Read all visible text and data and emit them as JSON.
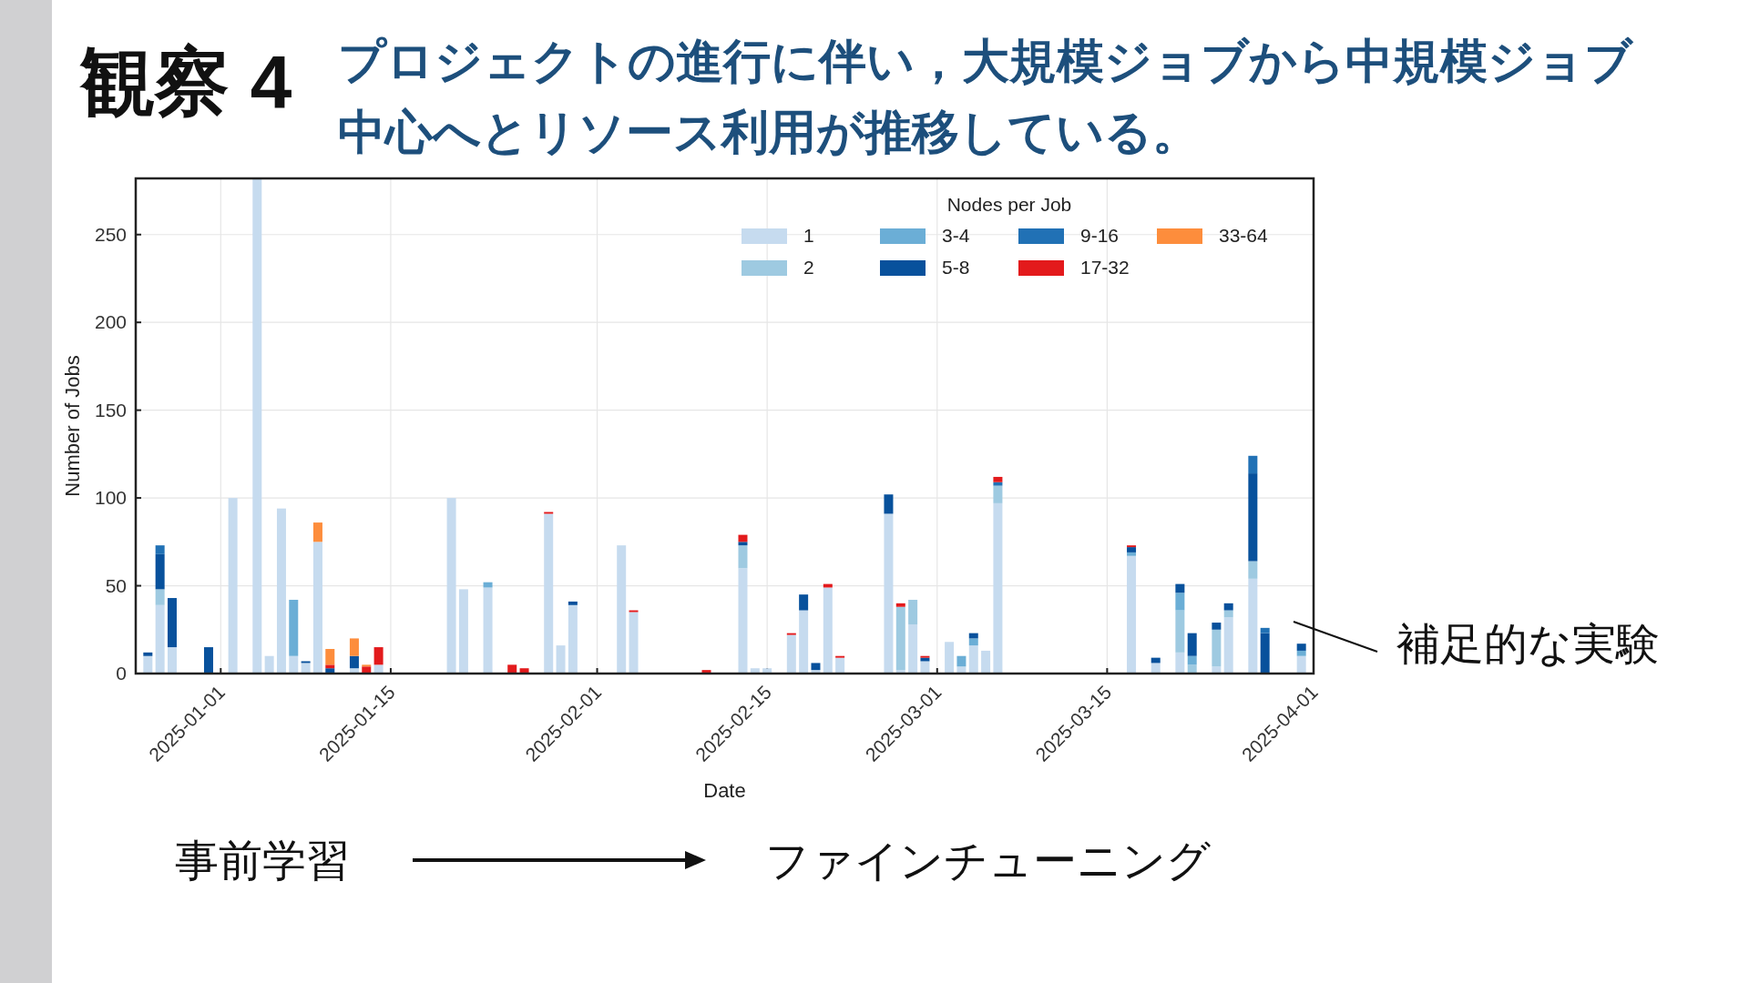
{
  "chart_data": {
    "type": "bar",
    "stacked": true,
    "title": "観察 4",
    "subtitle": "プロジェクトの進行に伴い，大規模ジョブから中規模ジョブ中心へとリソース利用が推移している。",
    "xlabel": "Date",
    "ylabel": "Number of Jobs",
    "legend_title": "Nodes per Job",
    "legend": "top right",
    "grid": true,
    "xlim": [
      "2024-12-25",
      "2025-04-01"
    ],
    "xticks": [
      "2025-01-01",
      "2025-01-15",
      "2025-02-01",
      "2025-02-15",
      "2025-03-01",
      "2025-03-15",
      "2025-04-01"
    ],
    "ylim": [
      0,
      282
    ],
    "yticks": [
      0,
      50,
      100,
      150,
      200,
      250
    ],
    "x": [
      "2024-12-26",
      "2024-12-27",
      "2024-12-28",
      "2024-12-31",
      "2025-01-02",
      "2025-01-04",
      "2025-01-05",
      "2025-01-06",
      "2025-01-07",
      "2025-01-08",
      "2025-01-09",
      "2025-01-10",
      "2025-01-12",
      "2025-01-13",
      "2025-01-14",
      "2025-01-20",
      "2025-01-21",
      "2025-01-23",
      "2025-01-25",
      "2025-01-26",
      "2025-01-28",
      "2025-01-29",
      "2025-01-30",
      "2025-02-03",
      "2025-02-04",
      "2025-02-10",
      "2025-02-13",
      "2025-02-14",
      "2025-02-15",
      "2025-02-17",
      "2025-02-18",
      "2025-02-19",
      "2025-02-20",
      "2025-02-21",
      "2025-02-25",
      "2025-02-26",
      "2025-02-27",
      "2025-02-28",
      "2025-03-02",
      "2025-03-03",
      "2025-03-04",
      "2025-03-05",
      "2025-03-06",
      "2025-03-17",
      "2025-03-19",
      "2025-03-21",
      "2025-03-22",
      "2025-03-24",
      "2025-03-25",
      "2025-03-27",
      "2025-03-28",
      "2025-03-31"
    ],
    "series": [
      {
        "name": "1",
        "color": "#c6dbef",
        "values": [
          10,
          39,
          15,
          null,
          100,
          282,
          10,
          94,
          10,
          6,
          75,
          null,
          3,
          null,
          5,
          100,
          48,
          49,
          null,
          null,
          91,
          16,
          39,
          73,
          35,
          null,
          60,
          3,
          3,
          22,
          36,
          2,
          49,
          9,
          91,
          2,
          28,
          7,
          18,
          4,
          16,
          13,
          97,
          67,
          6,
          12,
          null,
          4,
          32,
          54,
          null,
          10
        ]
      },
      {
        "name": "2",
        "color": "#9ecae1",
        "values": [
          null,
          9,
          null,
          null,
          null,
          null,
          null,
          null,
          null,
          null,
          null,
          null,
          null,
          null,
          null,
          null,
          null,
          null,
          null,
          null,
          null,
          null,
          null,
          null,
          null,
          null,
          13,
          null,
          null,
          null,
          null,
          null,
          null,
          null,
          null,
          36,
          14,
          null,
          null,
          null,
          null,
          null,
          10,
          null,
          null,
          24,
          5,
          21,
          4,
          10,
          null,
          null
        ]
      },
      {
        "name": "3-4",
        "color": "#6baed6",
        "values": [
          null,
          null,
          null,
          null,
          null,
          null,
          null,
          null,
          32,
          null,
          null,
          null,
          null,
          null,
          null,
          null,
          null,
          3,
          null,
          null,
          null,
          null,
          null,
          null,
          null,
          null,
          null,
          null,
          null,
          null,
          null,
          null,
          null,
          null,
          null,
          null,
          null,
          null,
          null,
          6,
          4,
          null,
          null,
          2,
          null,
          10,
          5,
          null,
          null,
          null,
          null,
          3
        ]
      },
      {
        "name": "5-8",
        "color": "#08519c",
        "values": [
          2,
          20,
          28,
          15,
          null,
          null,
          null,
          null,
          null,
          1,
          null,
          3,
          7,
          null,
          null,
          null,
          null,
          null,
          null,
          null,
          null,
          null,
          2,
          null,
          null,
          null,
          2,
          null,
          null,
          null,
          9,
          4,
          null,
          null,
          11,
          null,
          null,
          2,
          null,
          null,
          3,
          null,
          null,
          3,
          3,
          5,
          13,
          4,
          4,
          50,
          23,
          4
        ]
      },
      {
        "name": "9-16",
        "color": "#2171b5",
        "values": [
          null,
          5,
          null,
          null,
          null,
          null,
          null,
          null,
          null,
          null,
          null,
          null,
          null,
          null,
          null,
          null,
          null,
          null,
          null,
          null,
          null,
          null,
          null,
          null,
          null,
          null,
          null,
          null,
          null,
          null,
          null,
          null,
          null,
          null,
          null,
          null,
          null,
          null,
          null,
          null,
          null,
          null,
          2,
          null,
          null,
          null,
          null,
          null,
          null,
          10,
          3,
          null
        ]
      },
      {
        "name": "17-32",
        "color": "#e31a1c",
        "values": [
          null,
          null,
          null,
          null,
          null,
          null,
          null,
          null,
          null,
          null,
          null,
          2,
          null,
          4,
          10,
          null,
          null,
          null,
          5,
          3,
          1,
          null,
          null,
          null,
          1,
          2,
          4,
          null,
          null,
          1,
          null,
          null,
          2,
          1,
          null,
          2,
          null,
          1,
          null,
          null,
          null,
          null,
          3,
          1,
          null,
          null,
          null,
          null,
          null,
          null,
          null,
          null
        ]
      },
      {
        "name": "33-64",
        "color": "#fd8d3c",
        "values": [
          null,
          null,
          null,
          null,
          null,
          null,
          null,
          null,
          null,
          null,
          11,
          9,
          10,
          1,
          null,
          null,
          null,
          null,
          null,
          null,
          null,
          null,
          null,
          null,
          null,
          null,
          null,
          null,
          null,
          null,
          null,
          null,
          null,
          null,
          null,
          null,
          null,
          null,
          null,
          null,
          null,
          null,
          null,
          null,
          null,
          null,
          null,
          null,
          null,
          null,
          null,
          null
        ]
      }
    ],
    "annotations": [
      "事前学習",
      "ファインチューニング",
      "補足的な実験"
    ]
  }
}
